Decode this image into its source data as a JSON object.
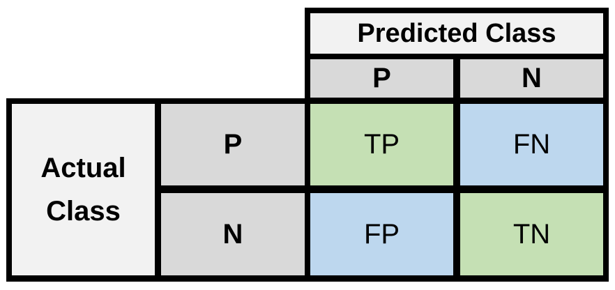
{
  "predicted_header": "Predicted Class",
  "actual_header": "Actual\nClass",
  "predicted_classes": [
    "P",
    "N"
  ],
  "actual_classes": [
    "P",
    "N"
  ],
  "cells": [
    [
      "TP",
      "FN"
    ],
    [
      "FP",
      "TN"
    ]
  ],
  "colors": {
    "correct": "#c5e0b4",
    "error": "#bdd7ee",
    "header_light": "#f2f2f2",
    "header_dark": "#d9d9d9",
    "border": "#000000"
  }
}
